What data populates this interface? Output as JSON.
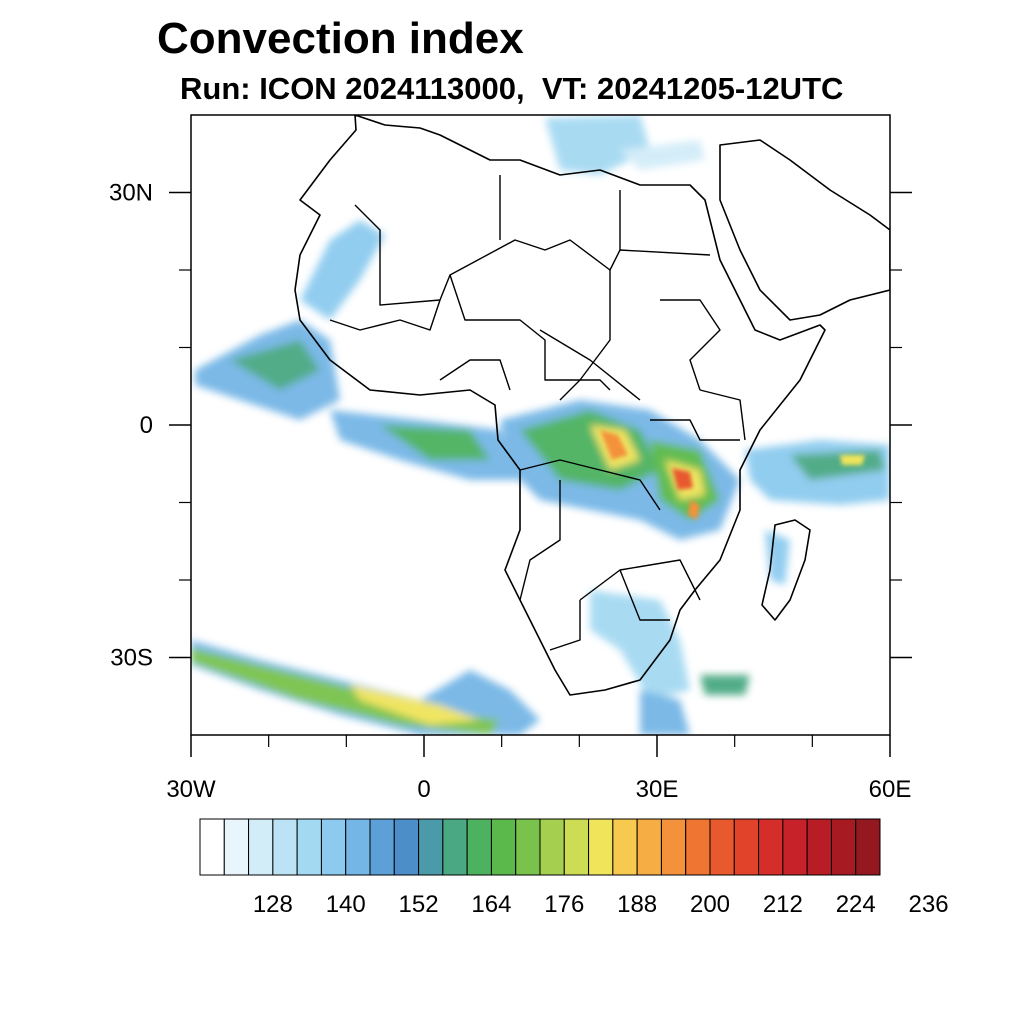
{
  "title": "Convection index",
  "subtitle": "Run: ICON 2024113000,  VT: 20241205-12UTC",
  "map": {
    "extent": {
      "lon": [
        -30,
        60
      ],
      "lat": [
        -40,
        40
      ]
    },
    "x_ticks": [
      {
        "lon": -30,
        "label": "30W"
      },
      {
        "lon": 0,
        "label": "0"
      },
      {
        "lon": 30,
        "label": "30E"
      },
      {
        "lon": 60,
        "label": "60E"
      }
    ],
    "x_minor_ticks": [
      -20,
      -10,
      10,
      20,
      40,
      50
    ],
    "y_ticks": [
      {
        "lat": 30,
        "label": "30N"
      },
      {
        "lat": 0,
        "label": "0"
      },
      {
        "lat": -30,
        "label": "30S"
      }
    ],
    "y_minor_ticks": [
      20,
      10,
      -10,
      -20
    ]
  },
  "colorbar": {
    "colors": [
      "#ffffff",
      "#e8f5fc",
      "#d2ecf8",
      "#bbe3f5",
      "#a4d9f2",
      "#8ccbef",
      "#74b6e6",
      "#5d9fd7",
      "#4b8ec8",
      "#4a9aa9",
      "#4aa882",
      "#4cb25f",
      "#5ab94a",
      "#79c24b",
      "#a5cf4f",
      "#cddc55",
      "#f0e45a",
      "#f8c94f",
      "#f6ad44",
      "#f3923a",
      "#ee7532",
      "#e8592d",
      "#e0432a",
      "#d52d2a",
      "#c72129",
      "#b81c25",
      "#a71a22",
      "#94181f"
    ],
    "labels": [
      "128",
      "140",
      "152",
      "164",
      "176",
      "188",
      "200",
      "212",
      "224",
      "236"
    ]
  }
}
